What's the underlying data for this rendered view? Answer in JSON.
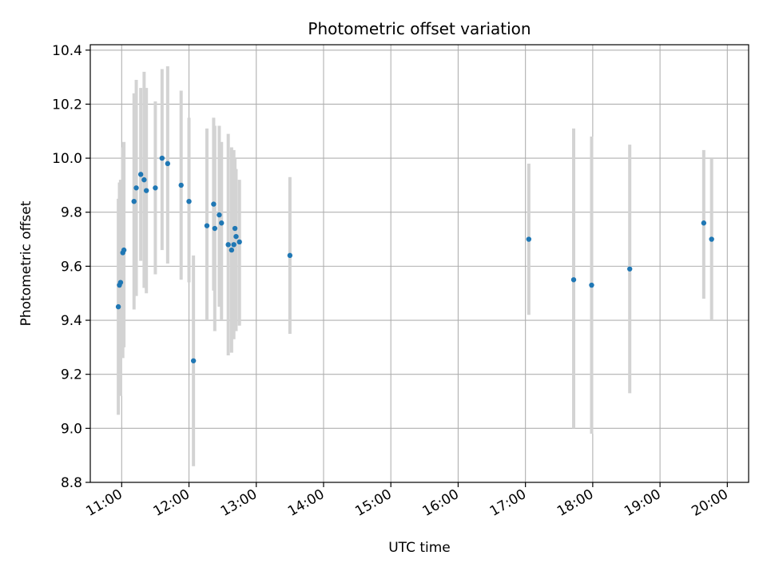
{
  "chart_data": {
    "type": "scatter",
    "title": "Photometric offset variation",
    "xlabel": "UTC time",
    "ylabel": "Photometric offset",
    "x_ticks": [
      "11:00",
      "12:00",
      "13:00",
      "14:00",
      "15:00",
      "16:00",
      "17:00",
      "18:00",
      "19:00",
      "20:00"
    ],
    "y_ticks": [
      "8.8",
      "9.0",
      "9.2",
      "9.4",
      "9.6",
      "9.8",
      "10.0",
      "10.2",
      "10.4"
    ],
    "xlim": [
      "10:32",
      "20:19"
    ],
    "ylim": [
      8.8,
      10.42
    ],
    "grid": true,
    "colors": {
      "points": "#1f77b4",
      "errorbars": "#d3d3d3",
      "grid": "#b0b0b0"
    },
    "series": [
      {
        "points": [
          {
            "x": "10:57",
            "y": 9.45,
            "ylo": 9.05,
            "yhi": 9.85
          },
          {
            "x": "10:58",
            "y": 9.53,
            "ylo": 9.15,
            "yhi": 9.91
          },
          {
            "x": "10:59",
            "y": 9.54,
            "ylo": 9.12,
            "yhi": 9.92
          },
          {
            "x": "11:01",
            "y": 9.65,
            "ylo": 9.26,
            "yhi": 10.04
          },
          {
            "x": "11:02",
            "y": 9.66,
            "ylo": 9.3,
            "yhi": 10.06
          },
          {
            "x": "11:11",
            "y": 9.84,
            "ylo": 9.44,
            "yhi": 10.24
          },
          {
            "x": "11:13",
            "y": 9.89,
            "ylo": 9.49,
            "yhi": 10.29
          },
          {
            "x": "11:17",
            "y": 9.94,
            "ylo": 9.62,
            "yhi": 10.26
          },
          {
            "x": "11:20",
            "y": 9.92,
            "ylo": 9.52,
            "yhi": 10.32
          },
          {
            "x": "11:22",
            "y": 9.88,
            "ylo": 9.5,
            "yhi": 10.26
          },
          {
            "x": "11:30",
            "y": 9.89,
            "ylo": 9.57,
            "yhi": 10.21
          },
          {
            "x": "11:36",
            "y": 10.0,
            "ylo": 9.66,
            "yhi": 10.33
          },
          {
            "x": "11:41",
            "y": 9.98,
            "ylo": 9.61,
            "yhi": 10.34
          },
          {
            "x": "11:53",
            "y": 9.9,
            "ylo": 9.55,
            "yhi": 10.25
          },
          {
            "x": "12:00",
            "y": 9.84,
            "ylo": 9.54,
            "yhi": 10.15
          },
          {
            "x": "12:04",
            "y": 9.25,
            "ylo": 8.86,
            "yhi": 9.64
          },
          {
            "x": "12:16",
            "y": 9.75,
            "ylo": 9.4,
            "yhi": 10.11
          },
          {
            "x": "12:22",
            "y": 9.83,
            "ylo": 9.51,
            "yhi": 10.15
          },
          {
            "x": "12:23",
            "y": 9.74,
            "ylo": 9.36,
            "yhi": 10.12
          },
          {
            "x": "12:27",
            "y": 9.79,
            "ylo": 9.45,
            "yhi": 10.12
          },
          {
            "x": "12:29",
            "y": 9.76,
            "ylo": 9.4,
            "yhi": 10.06
          },
          {
            "x": "12:35",
            "y": 9.68,
            "ylo": 9.27,
            "yhi": 10.09
          },
          {
            "x": "12:38",
            "y": 9.66,
            "ylo": 9.28,
            "yhi": 10.04
          },
          {
            "x": "12:40",
            "y": 9.68,
            "ylo": 9.33,
            "yhi": 10.03
          },
          {
            "x": "12:41",
            "y": 9.74,
            "ylo": 9.43,
            "yhi": 10.0
          },
          {
            "x": "12:42",
            "y": 9.71,
            "ylo": 9.36,
            "yhi": 9.96
          },
          {
            "x": "12:45",
            "y": 9.69,
            "ylo": 9.38,
            "yhi": 9.92
          },
          {
            "x": "13:30",
            "y": 9.64,
            "ylo": 9.35,
            "yhi": 9.93
          },
          {
            "x": "17:03",
            "y": 9.7,
            "ylo": 9.42,
            "yhi": 9.98
          },
          {
            "x": "17:43",
            "y": 9.55,
            "ylo": 9.0,
            "yhi": 10.11
          },
          {
            "x": "17:59",
            "y": 9.53,
            "ylo": 8.98,
            "yhi": 10.08
          },
          {
            "x": "18:33",
            "y": 9.59,
            "ylo": 9.13,
            "yhi": 10.05
          },
          {
            "x": "19:39",
            "y": 9.76,
            "ylo": 9.48,
            "yhi": 10.03
          },
          {
            "x": "19:46",
            "y": 9.7,
            "ylo": 9.4,
            "yhi": 10.0
          }
        ]
      }
    ]
  }
}
